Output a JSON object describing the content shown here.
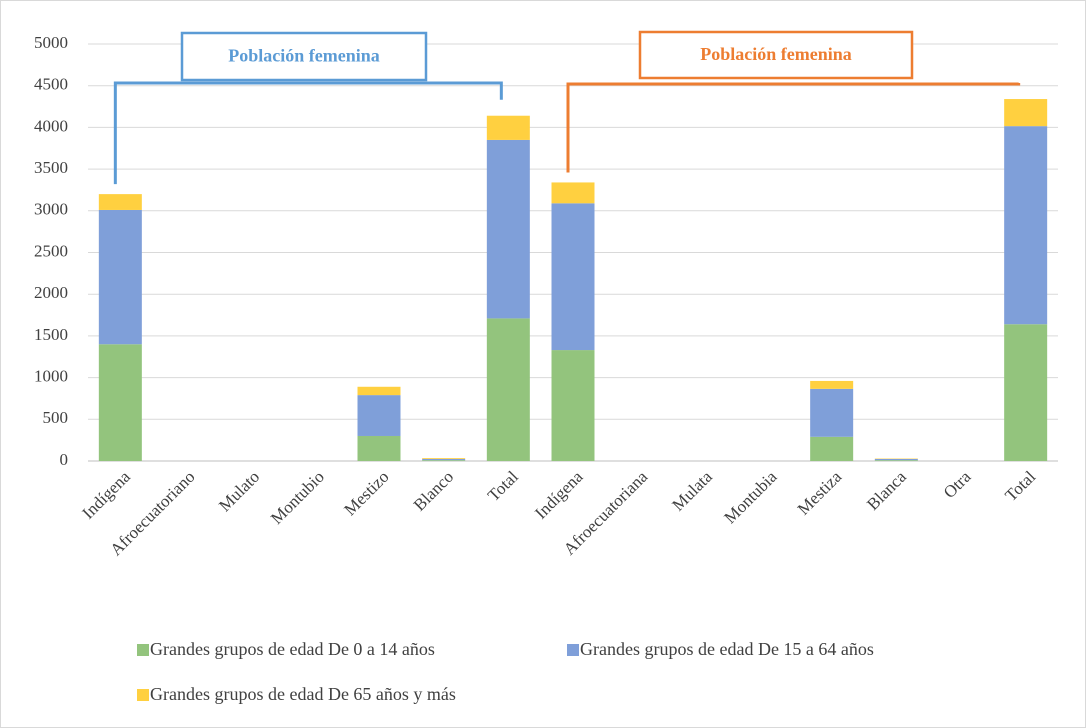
{
  "chart_data": {
    "type": "stacked_bar",
    "categories": [
      "Indígena",
      "Afroecuatoriano",
      "Mulato",
      "Montubio",
      "Mestizo",
      "Blanco",
      "Total",
      "Indígena",
      "Afroecuatoriana",
      "Mulata",
      "Montubia",
      "Mestiza",
      "Blanca",
      "Otra",
      "Total"
    ],
    "series": [
      {
        "name": "Grandes grupos de edad De 0 a 14 años",
        "color": "#93c47d",
        "values": [
          1400,
          0,
          0,
          0,
          300,
          10,
          1710,
          1330,
          0,
          0,
          0,
          290,
          10,
          0,
          1640
        ]
      },
      {
        "name": "Grandes grupos de edad De 15 a 64 años",
        "color": "#7f9fd9",
        "values": [
          1610,
          0,
          0,
          0,
          490,
          15,
          2140,
          1760,
          0,
          0,
          0,
          575,
          15,
          0,
          2375
        ]
      },
      {
        "name": "Grandes grupos de edad De 65 años y más",
        "color": "#ffd040",
        "values": [
          190,
          0,
          0,
          0,
          100,
          10,
          290,
          250,
          0,
          0,
          0,
          95,
          5,
          0,
          325
        ]
      }
    ],
    "annotations": [
      {
        "text": "Población femenina",
        "color": "#5b9bd5"
      },
      {
        "text": "Población femenina",
        "color": "#ed7d31"
      }
    ],
    "ylim": [
      0,
      5000
    ],
    "yticks": [
      0,
      500,
      1000,
      1500,
      2000,
      2500,
      3000,
      3500,
      4000,
      4500,
      5000
    ],
    "grid": true,
    "legend": "bottom"
  }
}
